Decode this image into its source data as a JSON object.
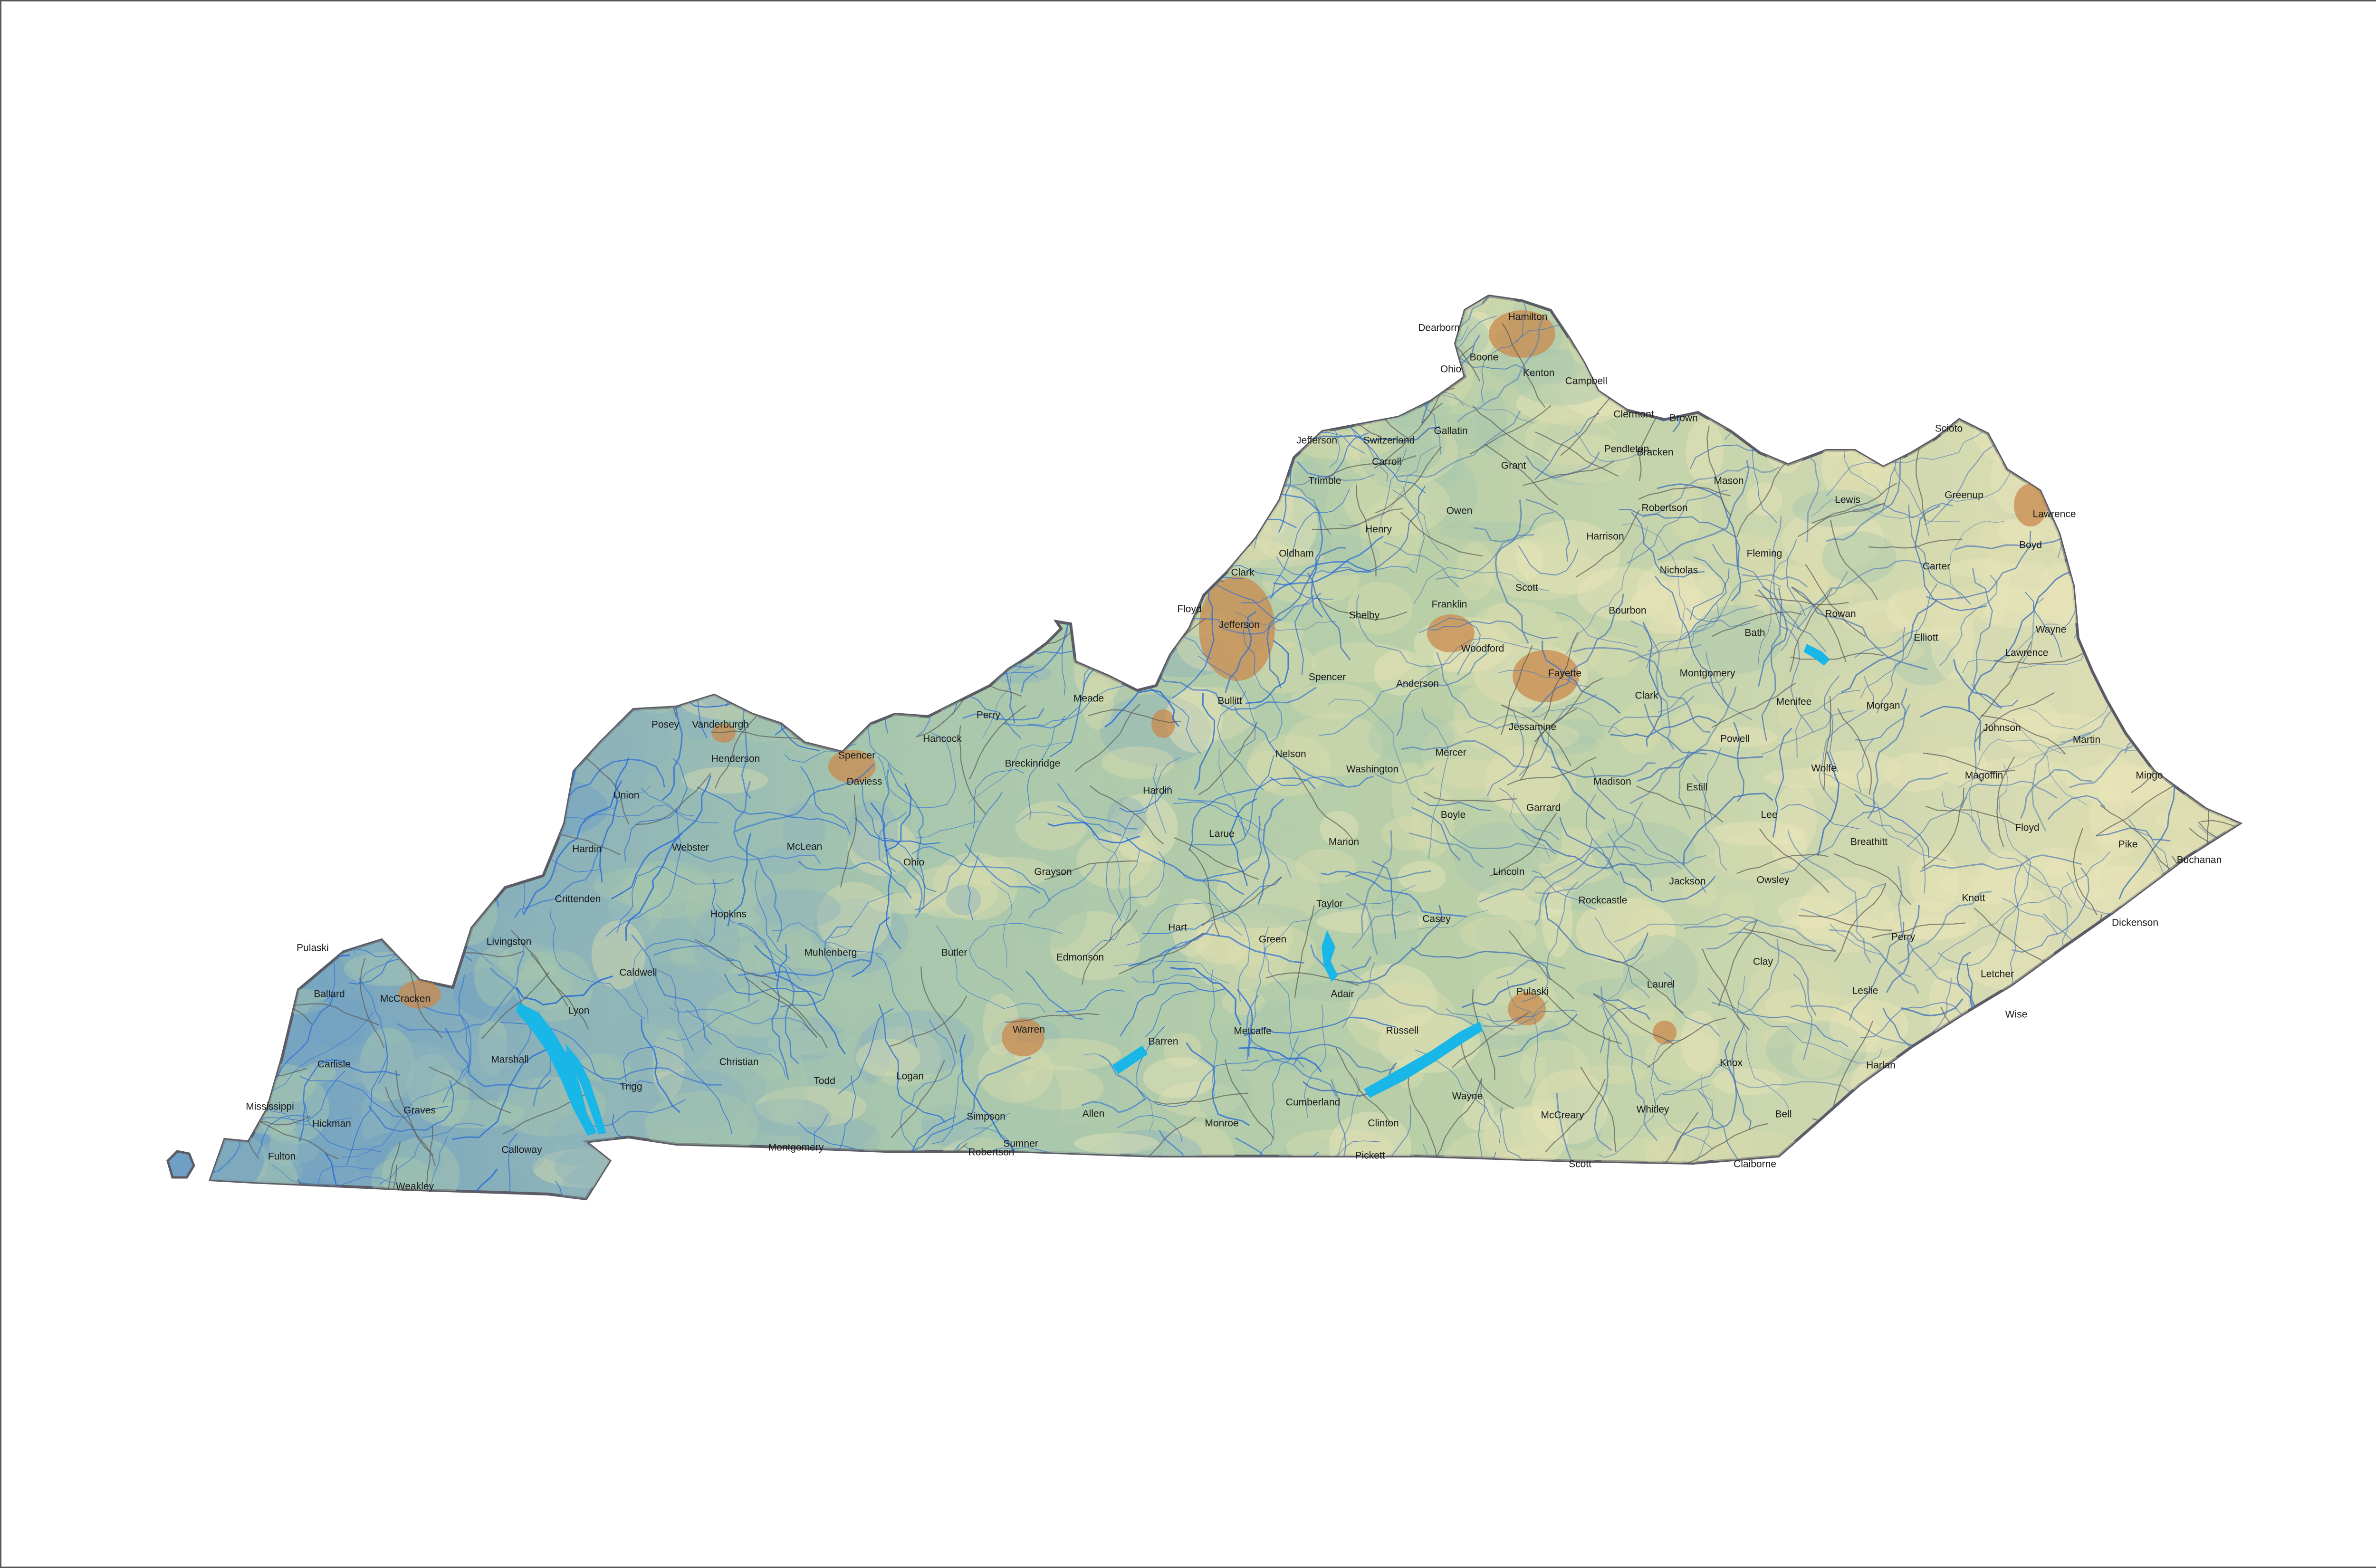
{
  "map": {
    "colors": {
      "background": "#ffffff",
      "land_light": "#e9e4b8",
      "land_mid": "#a9c7ad",
      "land_blue": "#6f9fc4",
      "urban": "#c98a4e",
      "river": "#2d6fd6",
      "lake": "#19b6e8",
      "county_border": "#5a5a5a",
      "state_border": "#5c5c66"
    },
    "county_labels": [
      {
        "id": "dearborn",
        "text": "Dearborn"
      },
      {
        "id": "hamilton",
        "text": "Hamilton"
      },
      {
        "id": "boone",
        "text": "Boone"
      },
      {
        "id": "ohio-in",
        "text": "Ohio"
      },
      {
        "id": "kenton",
        "text": "Kenton"
      },
      {
        "id": "campbell",
        "text": "Campbell"
      },
      {
        "id": "clermont",
        "text": "Clermont"
      },
      {
        "id": "brown",
        "text": "Brown"
      },
      {
        "id": "scioto",
        "text": "Scioto"
      },
      {
        "id": "jefferson-in",
        "text": "Jefferson"
      },
      {
        "id": "switzerland",
        "text": "Switzerland"
      },
      {
        "id": "gallatin",
        "text": "Gallatin"
      },
      {
        "id": "carroll",
        "text": "Carroll"
      },
      {
        "id": "grant",
        "text": "Grant"
      },
      {
        "id": "pendleton",
        "text": "Pendleton"
      },
      {
        "id": "bracken",
        "text": "Bracken"
      },
      {
        "id": "lewis",
        "text": "Lewis"
      },
      {
        "id": "greenup",
        "text": "Greenup"
      },
      {
        "id": "lawrence-oh",
        "text": "Lawrence"
      },
      {
        "id": "trimble",
        "text": "Trimble"
      },
      {
        "id": "owen",
        "text": "Owen"
      },
      {
        "id": "mason",
        "text": "Mason"
      },
      {
        "id": "robertson-ky",
        "text": "Robertson"
      },
      {
        "id": "henry",
        "text": "Henry"
      },
      {
        "id": "harrison",
        "text": "Harrison"
      },
      {
        "id": "boyd",
        "text": "Boyd"
      },
      {
        "id": "oldham",
        "text": "Oldham"
      },
      {
        "id": "fleming",
        "text": "Fleming"
      },
      {
        "id": "carter",
        "text": "Carter"
      },
      {
        "id": "clark-in",
        "text": "Clark"
      },
      {
        "id": "nicholas",
        "text": "Nicholas"
      },
      {
        "id": "scott-ky",
        "text": "Scott"
      },
      {
        "id": "floyd-in",
        "text": "Floyd"
      },
      {
        "id": "franklin",
        "text": "Franklin"
      },
      {
        "id": "shelby",
        "text": "Shelby"
      },
      {
        "id": "bourbon",
        "text": "Bourbon"
      },
      {
        "id": "rowan",
        "text": "Rowan"
      },
      {
        "id": "jefferson-ky",
        "text": "Jefferson"
      },
      {
        "id": "wayne-wv",
        "text": "Wayne"
      },
      {
        "id": "woodford",
        "text": "Woodford"
      },
      {
        "id": "bath",
        "text": "Bath"
      },
      {
        "id": "elliott",
        "text": "Elliott"
      },
      {
        "id": "lawrence-ky",
        "text": "Lawrence"
      },
      {
        "id": "spencer",
        "text": "Spencer"
      },
      {
        "id": "anderson",
        "text": "Anderson"
      },
      {
        "id": "fayette",
        "text": "Fayette"
      },
      {
        "id": "montgomery-ky",
        "text": "Montgomery"
      },
      {
        "id": "clark-ky",
        "text": "Clark"
      },
      {
        "id": "bullitt",
        "text": "Bullitt"
      },
      {
        "id": "meade",
        "text": "Meade"
      },
      {
        "id": "menifee",
        "text": "Menifee"
      },
      {
        "id": "morgan",
        "text": "Morgan"
      },
      {
        "id": "perry-in",
        "text": "Perry"
      },
      {
        "id": "posey",
        "text": "Posey"
      },
      {
        "id": "vanderburgh",
        "text": "Vanderburgh"
      },
      {
        "id": "jessamine",
        "text": "Jessamine"
      },
      {
        "id": "johnson",
        "text": "Johnson"
      },
      {
        "id": "hancock",
        "text": "Hancock"
      },
      {
        "id": "powell",
        "text": "Powell"
      },
      {
        "id": "martin",
        "text": "Martin"
      },
      {
        "id": "nelson",
        "text": "Nelson"
      },
      {
        "id": "mercer",
        "text": "Mercer"
      },
      {
        "id": "henderson",
        "text": "Henderson"
      },
      {
        "id": "spencer-in",
        "text": "Spencer"
      },
      {
        "id": "breckinridge",
        "text": "Breckinridge"
      },
      {
        "id": "washington",
        "text": "Washington"
      },
      {
        "id": "wolfe",
        "text": "Wolfe"
      },
      {
        "id": "magoffin",
        "text": "Magoffin"
      },
      {
        "id": "mingo",
        "text": "Mingo"
      },
      {
        "id": "daviess",
        "text": "Daviess"
      },
      {
        "id": "madison",
        "text": "Madison"
      },
      {
        "id": "estill",
        "text": "Estill"
      },
      {
        "id": "union",
        "text": "Union"
      },
      {
        "id": "hardin-ky",
        "text": "Hardin"
      },
      {
        "id": "garrard",
        "text": "Garrard"
      },
      {
        "id": "boyle",
        "text": "Boyle"
      },
      {
        "id": "lee",
        "text": "Lee"
      },
      {
        "id": "floyd-ky",
        "text": "Floyd"
      },
      {
        "id": "larue",
        "text": "Larue"
      },
      {
        "id": "breathitt",
        "text": "Breathitt"
      },
      {
        "id": "marion",
        "text": "Marion"
      },
      {
        "id": "pike",
        "text": "Pike"
      },
      {
        "id": "webster",
        "text": "Webster"
      },
      {
        "id": "mclean",
        "text": "McLean"
      },
      {
        "id": "hardin-il",
        "text": "Hardin"
      },
      {
        "id": "buchanan",
        "text": "Buchanan"
      },
      {
        "id": "ohio-ky",
        "text": "Ohio"
      },
      {
        "id": "lincoln",
        "text": "Lincoln"
      },
      {
        "id": "grayson",
        "text": "Grayson"
      },
      {
        "id": "jackson",
        "text": "Jackson"
      },
      {
        "id": "owsley",
        "text": "Owsley"
      },
      {
        "id": "crittenden",
        "text": "Crittenden"
      },
      {
        "id": "rockcastle",
        "text": "Rockcastle"
      },
      {
        "id": "taylor",
        "text": "Taylor"
      },
      {
        "id": "knott",
        "text": "Knott"
      },
      {
        "id": "hopkins",
        "text": "Hopkins"
      },
      {
        "id": "casey",
        "text": "Casey"
      },
      {
        "id": "dickenson",
        "text": "Dickenson"
      },
      {
        "id": "hart",
        "text": "Hart"
      },
      {
        "id": "perry-ky",
        "text": "Perry"
      },
      {
        "id": "livingston",
        "text": "Livingston"
      },
      {
        "id": "pulaski-il",
        "text": "Pulaski"
      },
      {
        "id": "butler",
        "text": "Butler"
      },
      {
        "id": "green",
        "text": "Green"
      },
      {
        "id": "muhlenberg",
        "text": "Muhlenberg"
      },
      {
        "id": "clay",
        "text": "Clay"
      },
      {
        "id": "edmonson",
        "text": "Edmonson"
      },
      {
        "id": "caldwell",
        "text": "Caldwell"
      },
      {
        "id": "letcher",
        "text": "Letcher"
      },
      {
        "id": "leslie",
        "text": "Leslie"
      },
      {
        "id": "adair",
        "text": "Adair"
      },
      {
        "id": "laurel",
        "text": "Laurel"
      },
      {
        "id": "pulaski-ky",
        "text": "Pulaski"
      },
      {
        "id": "ballard",
        "text": "Ballard"
      },
      {
        "id": "mccracken",
        "text": "McCracken"
      },
      {
        "id": "lyon",
        "text": "Lyon"
      },
      {
        "id": "wise",
        "text": "Wise"
      },
      {
        "id": "russell",
        "text": "Russell"
      },
      {
        "id": "metcalfe",
        "text": "Metcalfe"
      },
      {
        "id": "warren",
        "text": "Warren"
      },
      {
        "id": "barren",
        "text": "Barren"
      },
      {
        "id": "marshall",
        "text": "Marshall"
      },
      {
        "id": "harlan",
        "text": "Harlan"
      },
      {
        "id": "christian",
        "text": "Christian"
      },
      {
        "id": "knox",
        "text": "Knox"
      },
      {
        "id": "carlisle",
        "text": "Carlisle"
      },
      {
        "id": "todd",
        "text": "Todd"
      },
      {
        "id": "logan",
        "text": "Logan"
      },
      {
        "id": "trigg",
        "text": "Trigg"
      },
      {
        "id": "cumberland",
        "text": "Cumberland"
      },
      {
        "id": "wayne-ky",
        "text": "Wayne"
      },
      {
        "id": "mississippi",
        "text": "Mississippi"
      },
      {
        "id": "graves",
        "text": "Graves"
      },
      {
        "id": "allen",
        "text": "Allen"
      },
      {
        "id": "simpson",
        "text": "Simpson"
      },
      {
        "id": "whitley",
        "text": "Whitley"
      },
      {
        "id": "bell",
        "text": "Bell"
      },
      {
        "id": "monroe",
        "text": "Monroe"
      },
      {
        "id": "clinton",
        "text": "Clinton"
      },
      {
        "id": "mccreary",
        "text": "McCreary"
      },
      {
        "id": "hickman",
        "text": "Hickman"
      },
      {
        "id": "calloway",
        "text": "Calloway"
      },
      {
        "id": "sumner",
        "text": "Sumner"
      },
      {
        "id": "montgomery-tn",
        "text": "Montgomery"
      },
      {
        "id": "robertson-tn",
        "text": "Robertson"
      },
      {
        "id": "fulton",
        "text": "Fulton"
      },
      {
        "id": "pickett",
        "text": "Pickett"
      },
      {
        "id": "scott-tn",
        "text": "Scott"
      },
      {
        "id": "claiborne",
        "text": "Claiborne"
      },
      {
        "id": "weakley",
        "text": "Weakley"
      }
    ]
  }
}
